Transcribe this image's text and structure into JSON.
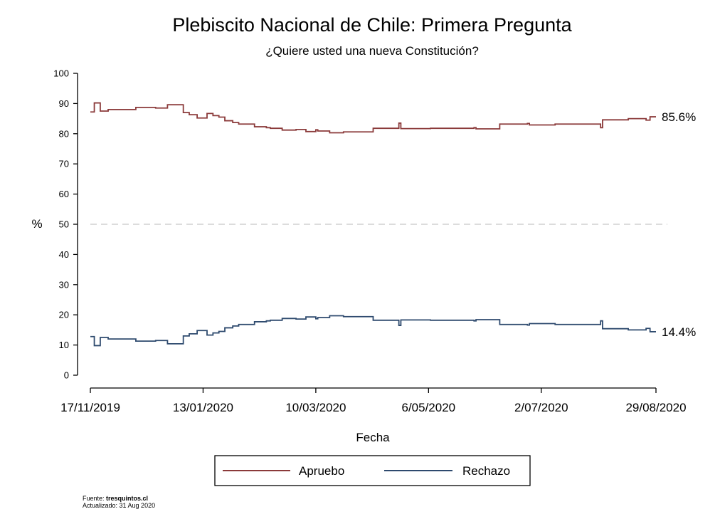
{
  "chart_data": {
    "type": "line",
    "title": "Plebiscito Nacional de Chile: Primera Pregunta",
    "subtitle": "¿Quiere usted una nueva Constitución?",
    "xlabel": "Fecha",
    "ylabel": "%",
    "xlim": [
      "2019-11-17",
      "2020-08-29"
    ],
    "ylim": [
      0,
      100
    ],
    "yticks": [
      "0",
      "10",
      "20",
      "30",
      "40",
      "50",
      "60",
      "70",
      "80",
      "90",
      "100"
    ],
    "xticks": [
      {
        "date": "2019-11-17",
        "label": "17/11/2019"
      },
      {
        "date": "2020-01-13",
        "label": "13/01/2020"
      },
      {
        "date": "2020-03-10",
        "label": "10/03/2020"
      },
      {
        "date": "2020-05-06",
        "label": "6/05/2020"
      },
      {
        "date": "2020-07-02",
        "label": "2/07/2020"
      },
      {
        "date": "2020-08-29",
        "label": "29/08/2020"
      }
    ],
    "reference_line": {
      "y": 50,
      "style": "dashed"
    },
    "grid": false,
    "legend_position": "bottom",
    "series": [
      {
        "name": "Apruebo",
        "color": "#8b3a3a",
        "end_label": "85.6%",
        "step": true,
        "points": [
          [
            "2019-11-17",
            87.2
          ],
          [
            "2019-11-19",
            90.2
          ],
          [
            "2019-11-22",
            87.5
          ],
          [
            "2019-11-26",
            88.0
          ],
          [
            "2019-12-10",
            88.7
          ],
          [
            "2019-12-20",
            88.5
          ],
          [
            "2019-12-26",
            89.6
          ],
          [
            "2020-01-03",
            87.0
          ],
          [
            "2020-01-06",
            86.3
          ],
          [
            "2020-01-10",
            85.2
          ],
          [
            "2020-01-15",
            86.7
          ],
          [
            "2020-01-18",
            86.0
          ],
          [
            "2020-01-21",
            85.5
          ],
          [
            "2020-01-24",
            84.3
          ],
          [
            "2020-01-28",
            83.7
          ],
          [
            "2020-01-31",
            83.2
          ],
          [
            "2020-02-08",
            82.3
          ],
          [
            "2020-02-14",
            82.0
          ],
          [
            "2020-02-16",
            81.8
          ],
          [
            "2020-02-22",
            81.2
          ],
          [
            "2020-02-29",
            81.4
          ],
          [
            "2020-03-05",
            80.7
          ],
          [
            "2020-03-10",
            81.3
          ],
          [
            "2020-03-11",
            80.9
          ],
          [
            "2020-03-17",
            80.3
          ],
          [
            "2020-03-24",
            80.6
          ],
          [
            "2020-04-08",
            81.8
          ],
          [
            "2020-04-21",
            83.5
          ],
          [
            "2020-04-22",
            81.7
          ],
          [
            "2020-05-07",
            81.8
          ],
          [
            "2020-05-29",
            82.0
          ],
          [
            "2020-05-30",
            81.6
          ],
          [
            "2020-06-11",
            83.2
          ],
          [
            "2020-06-25",
            83.4
          ],
          [
            "2020-06-26",
            82.9
          ],
          [
            "2020-07-09",
            83.2
          ],
          [
            "2020-08-01",
            82.0
          ],
          [
            "2020-08-02",
            84.6
          ],
          [
            "2020-08-15",
            85.0
          ],
          [
            "2020-08-24",
            84.5
          ],
          [
            "2020-08-26",
            85.6
          ],
          [
            "2020-08-29",
            85.6
          ]
        ]
      },
      {
        "name": "Rechazo",
        "color": "#2e4a6e",
        "end_label": "14.4%",
        "step": true,
        "points": [
          [
            "2019-11-17",
            12.8
          ],
          [
            "2019-11-19",
            9.8
          ],
          [
            "2019-11-22",
            12.5
          ],
          [
            "2019-11-26",
            12.0
          ],
          [
            "2019-12-10",
            11.3
          ],
          [
            "2019-12-20",
            11.5
          ],
          [
            "2019-12-26",
            10.4
          ],
          [
            "2020-01-03",
            13.0
          ],
          [
            "2020-01-06",
            13.7
          ],
          [
            "2020-01-10",
            14.8
          ],
          [
            "2020-01-15",
            13.3
          ],
          [
            "2020-01-18",
            14.0
          ],
          [
            "2020-01-21",
            14.5
          ],
          [
            "2020-01-24",
            15.7
          ],
          [
            "2020-01-28",
            16.3
          ],
          [
            "2020-01-31",
            16.8
          ],
          [
            "2020-02-08",
            17.7
          ],
          [
            "2020-02-14",
            18.0
          ],
          [
            "2020-02-16",
            18.2
          ],
          [
            "2020-02-22",
            18.8
          ],
          [
            "2020-02-29",
            18.6
          ],
          [
            "2020-03-05",
            19.3
          ],
          [
            "2020-03-10",
            18.7
          ],
          [
            "2020-03-11",
            19.1
          ],
          [
            "2020-03-17",
            19.7
          ],
          [
            "2020-03-24",
            19.4
          ],
          [
            "2020-04-08",
            18.2
          ],
          [
            "2020-04-21",
            16.5
          ],
          [
            "2020-04-22",
            18.3
          ],
          [
            "2020-05-07",
            18.2
          ],
          [
            "2020-05-29",
            18.0
          ],
          [
            "2020-05-30",
            18.4
          ],
          [
            "2020-06-11",
            16.8
          ],
          [
            "2020-06-25",
            16.6
          ],
          [
            "2020-06-26",
            17.1
          ],
          [
            "2020-07-09",
            16.8
          ],
          [
            "2020-08-01",
            18.0
          ],
          [
            "2020-08-02",
            15.4
          ],
          [
            "2020-08-15",
            15.0
          ],
          [
            "2020-08-24",
            15.5
          ],
          [
            "2020-08-26",
            14.4
          ],
          [
            "2020-08-29",
            14.4
          ]
        ]
      }
    ]
  },
  "footer": {
    "source_prefix": "Fuente: ",
    "source_name": "tresquintos.cl",
    "updated": "Actualizado: 31 Aug 2020"
  }
}
